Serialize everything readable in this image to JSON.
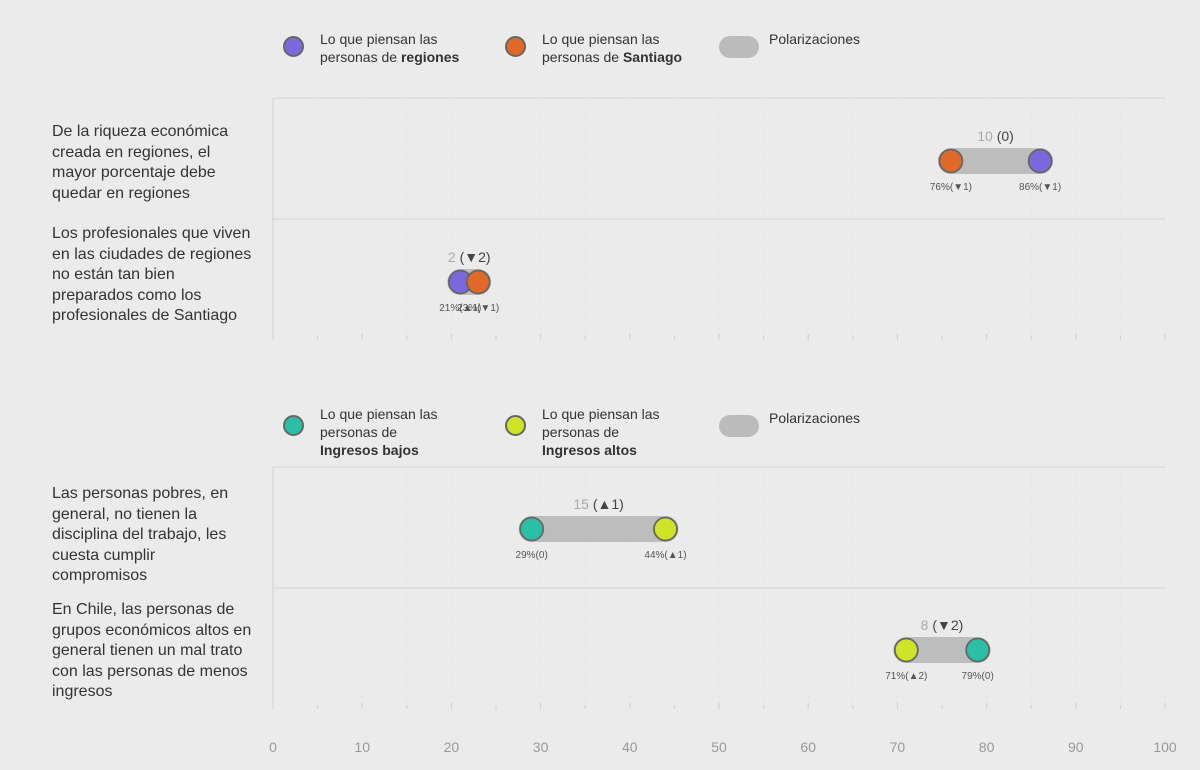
{
  "colors": {
    "regiones": "#7b68dc",
    "santiago": "#e0692a",
    "ingresos_bajos": "#2bbfa6",
    "ingresos_altos": "#cfe327",
    "pill": "#bdbdbd",
    "background": "#ebebeb"
  },
  "legend_top": {
    "item1": {
      "line1": "Lo que piensan las",
      "prefix": "personas de ",
      "bold": "regiones"
    },
    "item2": {
      "line1": "Lo que piensan las",
      "prefix": "personas de ",
      "bold": "Santiago"
    },
    "item3": {
      "label": "Polarizaciones"
    }
  },
  "legend_bottom": {
    "item1": {
      "line1": "Lo que piensan las",
      "line2": "personas de",
      "bold": "Ingresos bajos"
    },
    "item2": {
      "line1": "Lo que piensan las",
      "line2": "personas de",
      "bold": "Ingresos altos"
    },
    "item3": {
      "label": "Polarizaciones"
    }
  },
  "questions": [
    "De la riqueza económica creada en regiones, el mayor porcentaje debe quedar en regiones",
    "Los profesionales que viven en las ciudades de regiones no están tan bien preparados como los profesionales de Santiago",
    "Las personas pobres, en general, no tienen la disciplina del trabajo, les cuesta cumplir compromisos",
    "En Chile, las personas de grupos económicos altos en general tienen un mal trato con las personas de menos ingresos"
  ],
  "chart_data": {
    "type": "dumbbell",
    "xlim": [
      0,
      100
    ],
    "x_ticks": [
      "0",
      "10",
      "20",
      "30",
      "40",
      "50",
      "60",
      "70",
      "80",
      "90",
      "100"
    ],
    "rows": [
      {
        "question_index": 0,
        "polarization_value": "10",
        "polarization_change": "(0)",
        "points": [
          {
            "group": "santiago",
            "value": 76,
            "label": "76%(▼1)"
          },
          {
            "group": "regiones",
            "value": 86,
            "label": "86%(▼1)"
          }
        ]
      },
      {
        "question_index": 1,
        "polarization_value": "2",
        "polarization_change": "(▼2)",
        "points": [
          {
            "group": "regiones",
            "value": 21,
            "label": "21%(▲1)"
          },
          {
            "group": "santiago",
            "value": 23,
            "label": "23%(▼1)"
          }
        ]
      },
      {
        "question_index": 2,
        "polarization_value": "15",
        "polarization_change": "(▲1)",
        "points": [
          {
            "group": "ingresos_bajos",
            "value": 29,
            "label": "29%(0)"
          },
          {
            "group": "ingresos_altos",
            "value": 44,
            "label": "44%(▲1)"
          }
        ]
      },
      {
        "question_index": 3,
        "polarization_value": "8",
        "polarization_change": "(▼2)",
        "points": [
          {
            "group": "ingresos_altos",
            "value": 71,
            "label": "71%(▲2)"
          },
          {
            "group": "ingresos_bajos",
            "value": 79,
            "label": "79%(0)"
          }
        ]
      }
    ]
  }
}
